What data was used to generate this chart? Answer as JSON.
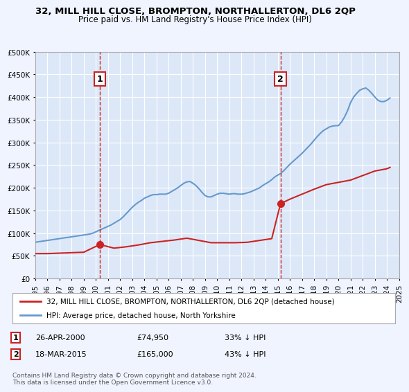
{
  "title": "32, MILL HILL CLOSE, BROMPTON, NORTHALLERTON, DL6 2QP",
  "subtitle": "Price paid vs. HM Land Registry's House Price Index (HPI)",
  "background_color": "#f0f4ff",
  "plot_bg_color": "#dce8f8",
  "legend_label_red": "32, MILL HILL CLOSE, BROMPTON, NORTHALLERTON, DL6 2QP (detached house)",
  "legend_label_blue": "HPI: Average price, detached house, North Yorkshire",
  "annotation1_label": "1",
  "annotation1_date": "26-APR-2000",
  "annotation1_price": "£74,950",
  "annotation1_hpi": "33% ↓ HPI",
  "annotation2_label": "2",
  "annotation2_date": "18-MAR-2015",
  "annotation2_price": "£165,000",
  "annotation2_hpi": "43% ↓ HPI",
  "footer": "Contains HM Land Registry data © Crown copyright and database right 2024.\nThis data is licensed under the Open Government Licence v3.0.",
  "ylim": [
    0,
    500000
  ],
  "yticks": [
    0,
    50000,
    100000,
    150000,
    200000,
    250000,
    300000,
    350000,
    400000,
    450000,
    500000
  ],
  "hpi_years": [
    1995.0,
    1995.25,
    1995.5,
    1995.75,
    1996.0,
    1996.25,
    1996.5,
    1996.75,
    1997.0,
    1997.25,
    1997.5,
    1997.75,
    1998.0,
    1998.25,
    1998.5,
    1998.75,
    1999.0,
    1999.25,
    1999.5,
    1999.75,
    2000.0,
    2000.25,
    2000.5,
    2000.75,
    2001.0,
    2001.25,
    2001.5,
    2001.75,
    2002.0,
    2002.25,
    2002.5,
    2002.75,
    2003.0,
    2003.25,
    2003.5,
    2003.75,
    2004.0,
    2004.25,
    2004.5,
    2004.75,
    2005.0,
    2005.25,
    2005.5,
    2005.75,
    2006.0,
    2006.25,
    2006.5,
    2006.75,
    2007.0,
    2007.25,
    2007.5,
    2007.75,
    2008.0,
    2008.25,
    2008.5,
    2008.75,
    2009.0,
    2009.25,
    2009.5,
    2009.75,
    2010.0,
    2010.25,
    2010.5,
    2010.75,
    2011.0,
    2011.25,
    2011.5,
    2011.75,
    2012.0,
    2012.25,
    2012.5,
    2012.75,
    2013.0,
    2013.25,
    2013.5,
    2013.75,
    2014.0,
    2014.25,
    2014.5,
    2014.75,
    2015.0,
    2015.25,
    2015.5,
    2015.75,
    2016.0,
    2016.25,
    2016.5,
    2016.75,
    2017.0,
    2017.25,
    2017.5,
    2017.75,
    2018.0,
    2018.25,
    2018.5,
    2018.75,
    2019.0,
    2019.25,
    2019.5,
    2019.75,
    2020.0,
    2020.25,
    2020.5,
    2020.75,
    2021.0,
    2021.25,
    2021.5,
    2021.75,
    2022.0,
    2022.25,
    2022.5,
    2022.75,
    2023.0,
    2023.25,
    2023.5,
    2023.75,
    2024.0,
    2024.25
  ],
  "hpi_values": [
    80000,
    81000,
    82000,
    83000,
    84000,
    85000,
    86000,
    87000,
    88000,
    89000,
    90000,
    91000,
    92000,
    93000,
    94000,
    95000,
    96000,
    97000,
    98000,
    100000,
    103000,
    106000,
    109000,
    112000,
    115000,
    118000,
    122000,
    126000,
    130000,
    136000,
    143000,
    150000,
    157000,
    163000,
    168000,
    172000,
    177000,
    180000,
    183000,
    185000,
    185000,
    186000,
    186000,
    186000,
    188000,
    192000,
    196000,
    200000,
    205000,
    210000,
    213000,
    214000,
    210000,
    205000,
    198000,
    190000,
    183000,
    180000,
    180000,
    183000,
    186000,
    188000,
    188000,
    187000,
    186000,
    187000,
    187000,
    186000,
    186000,
    187000,
    189000,
    191000,
    194000,
    197000,
    200000,
    205000,
    209000,
    213000,
    218000,
    224000,
    228000,
    232000,
    238000,
    245000,
    252000,
    258000,
    264000,
    270000,
    276000,
    283000,
    290000,
    297000,
    305000,
    313000,
    320000,
    326000,
    330000,
    334000,
    336000,
    337000,
    337000,
    345000,
    356000,
    370000,
    388000,
    400000,
    408000,
    415000,
    418000,
    420000,
    415000,
    408000,
    400000,
    393000,
    390000,
    390000,
    393000,
    398000
  ],
  "red_years": [
    1995.0,
    1996.0,
    1997.0,
    1998.0,
    1999.0,
    2000.32,
    2001.5,
    2002.5,
    2003.5,
    2004.5,
    2005.5,
    2006.5,
    2007.5,
    2008.5,
    2009.5,
    2010.5,
    2011.5,
    2012.5,
    2013.5,
    2014.5,
    2015.22,
    2016.0,
    2017.0,
    2018.0,
    2019.0,
    2020.0,
    2021.0,
    2022.0,
    2023.0,
    2024.0,
    2024.25
  ],
  "red_values": [
    55000,
    55000,
    56000,
    57000,
    58000,
    74950,
    67000,
    70000,
    74000,
    79000,
    82000,
    85000,
    89000,
    84000,
    79000,
    79000,
    79000,
    80000,
    84000,
    88000,
    165000,
    175000,
    186000,
    197000,
    207000,
    212000,
    217000,
    227000,
    237000,
    242000,
    245000
  ],
  "sale1_x": 2000.32,
  "sale1_y": 74950,
  "sale2_x": 2015.22,
  "sale2_y": 165000,
  "xmin": 1995,
  "xmax": 2025
}
